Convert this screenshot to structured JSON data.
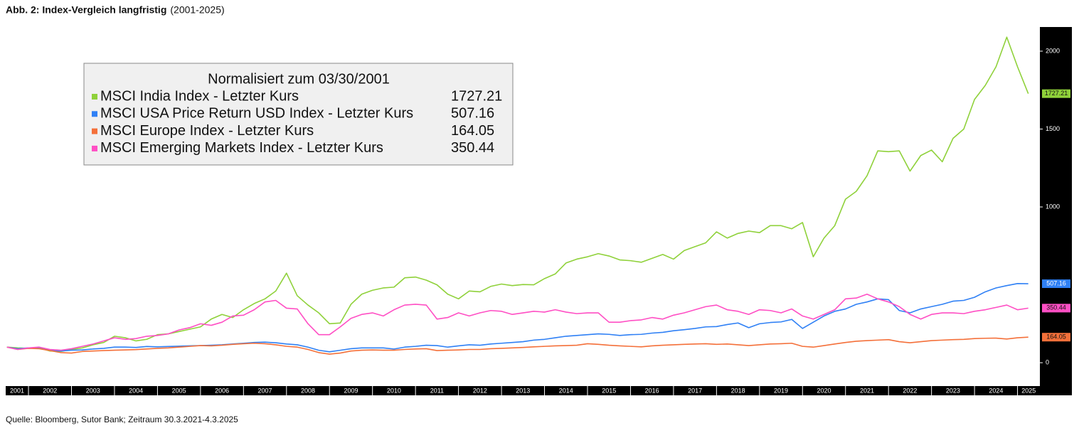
{
  "chart_data": {
    "type": "line",
    "title": "Abb. 2: Index-Vergleich langfristig",
    "subtitle": "(2001-2025)",
    "legend_title": "Normalisiert zum 03/30/2001",
    "source": "Quelle: Bloomberg, Sutor Bank; Zeitraum 30.3.2021-4.3.2025",
    "legend_position": "upper left",
    "grid": false,
    "xlim": [
      2001.47,
      2025.52
    ],
    "xticks": [
      2001,
      2002,
      2003,
      2004,
      2005,
      2006,
      2007,
      2008,
      2009,
      2010,
      2011,
      2012,
      2013,
      2014,
      2015,
      2016,
      2017,
      2018,
      2019,
      2020,
      2021,
      2022,
      2023,
      2024,
      2025
    ],
    "ylim": [
      -150,
      2155
    ],
    "yticks": [
      0,
      1000,
      1500,
      2000
    ],
    "x": [
      2001.5,
      2001.75,
      2002,
      2002.25,
      2002.5,
      2002.75,
      2003,
      2003.25,
      2003.5,
      2003.75,
      2004,
      2004.25,
      2004.5,
      2004.75,
      2005,
      2005.25,
      2005.5,
      2005.75,
      2006,
      2006.25,
      2006.5,
      2006.75,
      2007,
      2007.25,
      2007.5,
      2007.75,
      2008,
      2008.25,
      2008.5,
      2008.75,
      2009,
      2009.25,
      2009.5,
      2009.75,
      2010,
      2010.25,
      2010.5,
      2010.75,
      2011,
      2011.25,
      2011.5,
      2011.75,
      2012,
      2012.25,
      2012.5,
      2012.75,
      2013,
      2013.25,
      2013.5,
      2013.75,
      2014,
      2014.25,
      2014.5,
      2014.75,
      2015,
      2015.25,
      2015.5,
      2015.75,
      2016,
      2016.25,
      2016.5,
      2016.75,
      2017,
      2017.25,
      2017.5,
      2017.75,
      2018,
      2018.25,
      2018.5,
      2018.75,
      2019,
      2019.25,
      2019.5,
      2019.75,
      2020,
      2020.25,
      2020.5,
      2020.75,
      2021,
      2021.25,
      2021.5,
      2021.75,
      2022,
      2022.25,
      2022.5,
      2022.75,
      2023,
      2023.25,
      2023.5,
      2023.75,
      2024,
      2024.25,
      2024.5,
      2024.75,
      2025,
      2025.25
    ],
    "series": [
      {
        "name": "MSCI India Index - Letzter Kurs",
        "color": "#8fd13a",
        "label_text": "#111111",
        "values": [
          100,
          95,
          92,
          95,
          75,
          72,
          85,
          95,
          115,
          130,
          170,
          160,
          140,
          150,
          180,
          185,
          200,
          215,
          230,
          280,
          310,
          290,
          340,
          380,
          410,
          460,
          575,
          430,
          370,
          320,
          250,
          255,
          375,
          440,
          465,
          480,
          485,
          545,
          550,
          530,
          500,
          440,
          410,
          460,
          455,
          490,
          505,
          495,
          502,
          500,
          540,
          570,
          640,
          665,
          680,
          700,
          685,
          660,
          655,
          645,
          670,
          695,
          665,
          720,
          745,
          770,
          840,
          800,
          830,
          845,
          835,
          880,
          880,
          860,
          900,
          680,
          800,
          880,
          1050,
          1100,
          1200,
          1360,
          1355,
          1360,
          1230,
          1330,
          1365,
          1290,
          1440,
          1500,
          1690,
          1780,
          1900,
          2090,
          1900,
          1727.21
        ]
      },
      {
        "name": "MSCI USA Price Return USD Index - Letzter Kurs",
        "color": "#2f80f5",
        "label_text": "#ffffff",
        "values": [
          100,
          90,
          95,
          92,
          80,
          75,
          80,
          82,
          88,
          92,
          100,
          100,
          98,
          104,
          102,
          104,
          106,
          108,
          110,
          112,
          115,
          120,
          125,
          130,
          132,
          128,
          120,
          115,
          100,
          80,
          70,
          80,
          90,
          95,
          95,
          95,
          88,
          100,
          105,
          112,
          110,
          100,
          108,
          115,
          112,
          120,
          125,
          130,
          135,
          145,
          150,
          160,
          170,
          175,
          180,
          185,
          182,
          175,
          180,
          182,
          190,
          195,
          205,
          212,
          220,
          230,
          232,
          245,
          255,
          225,
          250,
          258,
          262,
          278,
          220,
          260,
          300,
          330,
          345,
          375,
          390,
          410,
          405,
          335,
          320,
          345,
          360,
          375,
          395,
          400,
          420,
          455,
          480,
          495,
          508,
          507.16
        ]
      },
      {
        "name": "MSCI Europe Index - Letzter Kurs",
        "color": "#f4703a",
        "label_text": "#111111",
        "values": [
          100,
          85,
          92,
          90,
          78,
          65,
          62,
          72,
          75,
          78,
          80,
          82,
          84,
          88,
          92,
          95,
          100,
          105,
          110,
          108,
          112,
          118,
          122,
          125,
          122,
          115,
          105,
          100,
          85,
          65,
          55,
          62,
          75,
          80,
          82,
          80,
          80,
          85,
          88,
          90,
          78,
          80,
          82,
          85,
          85,
          90,
          92,
          95,
          98,
          102,
          105,
          108,
          110,
          112,
          122,
          118,
          112,
          108,
          105,
          102,
          108,
          112,
          115,
          118,
          120,
          122,
          118,
          120,
          115,
          110,
          115,
          120,
          122,
          125,
          105,
          100,
          110,
          120,
          130,
          138,
          142,
          145,
          148,
          135,
          128,
          135,
          142,
          145,
          148,
          150,
          155,
          157,
          158,
          152,
          160,
          164.05
        ]
      },
      {
        "name": "MSCI Emerging Markets Index - Letzter Kurs",
        "color": "#ff4fc4",
        "label_text": "#111111",
        "values": [
          100,
          85,
          95,
          100,
          85,
          80,
          90,
          105,
          120,
          140,
          160,
          150,
          155,
          170,
          175,
          185,
          210,
          225,
          250,
          240,
          260,
          300,
          305,
          340,
          390,
          400,
          350,
          345,
          250,
          180,
          180,
          230,
          285,
          310,
          320,
          300,
          340,
          370,
          375,
          370,
          280,
          290,
          320,
          300,
          320,
          335,
          330,
          310,
          320,
          330,
          325,
          340,
          325,
          315,
          320,
          320,
          260,
          260,
          270,
          275,
          290,
          280,
          305,
          320,
          340,
          360,
          370,
          340,
          330,
          310,
          340,
          335,
          320,
          345,
          300,
          280,
          310,
          340,
          410,
          415,
          440,
          410,
          390,
          360,
          310,
          280,
          310,
          320,
          320,
          315,
          330,
          340,
          355,
          370,
          340,
          350.44
        ]
      }
    ]
  }
}
